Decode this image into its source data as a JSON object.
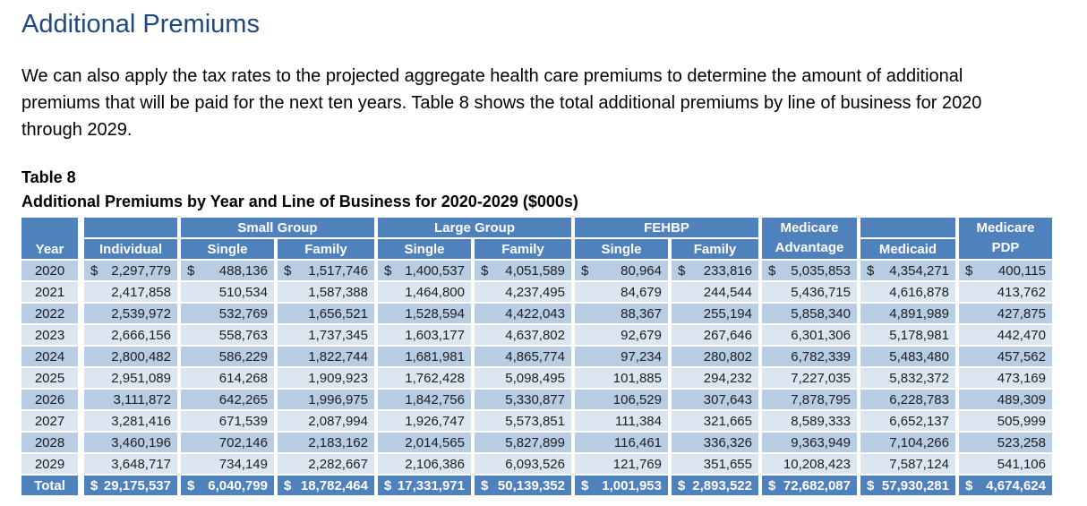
{
  "page": {
    "title": "Additional Premiums",
    "paragraph": "We can also apply the tax rates to the projected aggregate health care premiums to determine the amount of additional premiums that will be paid for the next ten years. Table 8 shows the total additional premiums by line of business for 2020 through 2029.",
    "table_label": "Table 8",
    "table_title": "Additional Premiums by Year and Line of Business for 2020-2029 ($000s)"
  },
  "colors": {
    "heading": "#1F497D",
    "header_bg": "#4F81BD",
    "row_dark": "#B8CCE4",
    "row_light": "#DCE6F1",
    "header_text": "#FFFFFF",
    "body_text": "#000000"
  },
  "table": {
    "header": {
      "year": "Year",
      "row1": [
        {
          "text": "",
          "span": 1
        },
        {
          "text": "Small Group",
          "span": 2
        },
        {
          "text": "Large Group",
          "span": 2
        },
        {
          "text": "FEHBP",
          "span": 2
        },
        {
          "text": "Medicare",
          "span": 1,
          "merge": "Advantage"
        },
        {
          "text": "",
          "span": 1
        },
        {
          "text": "Medicare",
          "span": 1,
          "merge": "PDP"
        }
      ],
      "row2": [
        "Individual",
        "Single",
        "Family",
        "Single",
        "Family",
        "Single",
        "Family",
        "Medicaid"
      ]
    },
    "currency_symbol": "$",
    "rows": [
      {
        "year": "2020",
        "dollar": true,
        "values": [
          "2,297,779",
          "488,136",
          "1,517,746",
          "1,400,537",
          "4,051,589",
          "80,964",
          "233,816",
          "5,035,853",
          "4,354,271",
          "400,115"
        ]
      },
      {
        "year": "2021",
        "dollar": false,
        "values": [
          "2,417,858",
          "510,534",
          "1,587,388",
          "1,464,800",
          "4,237,495",
          "84,679",
          "244,544",
          "5,436,715",
          "4,616,878",
          "413,762"
        ]
      },
      {
        "year": "2022",
        "dollar": false,
        "values": [
          "2,539,972",
          "532,769",
          "1,656,521",
          "1,528,594",
          "4,422,043",
          "88,367",
          "255,194",
          "5,858,340",
          "4,891,989",
          "427,875"
        ]
      },
      {
        "year": "2023",
        "dollar": false,
        "values": [
          "2,666,156",
          "558,763",
          "1,737,345",
          "1,603,177",
          "4,637,802",
          "92,679",
          "267,646",
          "6,301,306",
          "5,178,981",
          "442,470"
        ]
      },
      {
        "year": "2024",
        "dollar": false,
        "values": [
          "2,800,482",
          "586,229",
          "1,822,744",
          "1,681,981",
          "4,865,774",
          "97,234",
          "280,802",
          "6,782,339",
          "5,483,480",
          "457,562"
        ]
      },
      {
        "year": "2025",
        "dollar": false,
        "values": [
          "2,951,089",
          "614,268",
          "1,909,923",
          "1,762,428",
          "5,098,495",
          "101,885",
          "294,232",
          "7,227,035",
          "5,832,372",
          "473,169"
        ]
      },
      {
        "year": "2026",
        "dollar": false,
        "values": [
          "3,111,872",
          "642,265",
          "1,996,975",
          "1,842,756",
          "5,330,877",
          "106,529",
          "307,643",
          "7,878,795",
          "6,228,783",
          "489,309"
        ]
      },
      {
        "year": "2027",
        "dollar": false,
        "values": [
          "3,281,416",
          "671,539",
          "2,087,994",
          "1,926,747",
          "5,573,851",
          "111,384",
          "321,665",
          "8,589,333",
          "6,652,137",
          "505,999"
        ]
      },
      {
        "year": "2028",
        "dollar": false,
        "values": [
          "3,460,196",
          "702,146",
          "2,183,162",
          "2,014,565",
          "5,827,899",
          "116,461",
          "336,326",
          "9,363,949",
          "7,104,266",
          "523,258"
        ]
      },
      {
        "year": "2029",
        "dollar": false,
        "values": [
          "3,648,717",
          "734,149",
          "2,282,667",
          "2,106,386",
          "6,093,526",
          "121,769",
          "351,655",
          "10,208,423",
          "7,587,124",
          "541,106"
        ]
      }
    ],
    "total": {
      "label": "Total",
      "dollar": true,
      "values": [
        "29,175,537",
        "6,040,799",
        "18,782,464",
        "17,331,971",
        "50,139,352",
        "1,001,953",
        "2,893,522",
        "72,682,087",
        "57,930,281",
        "4,674,624"
      ]
    }
  }
}
